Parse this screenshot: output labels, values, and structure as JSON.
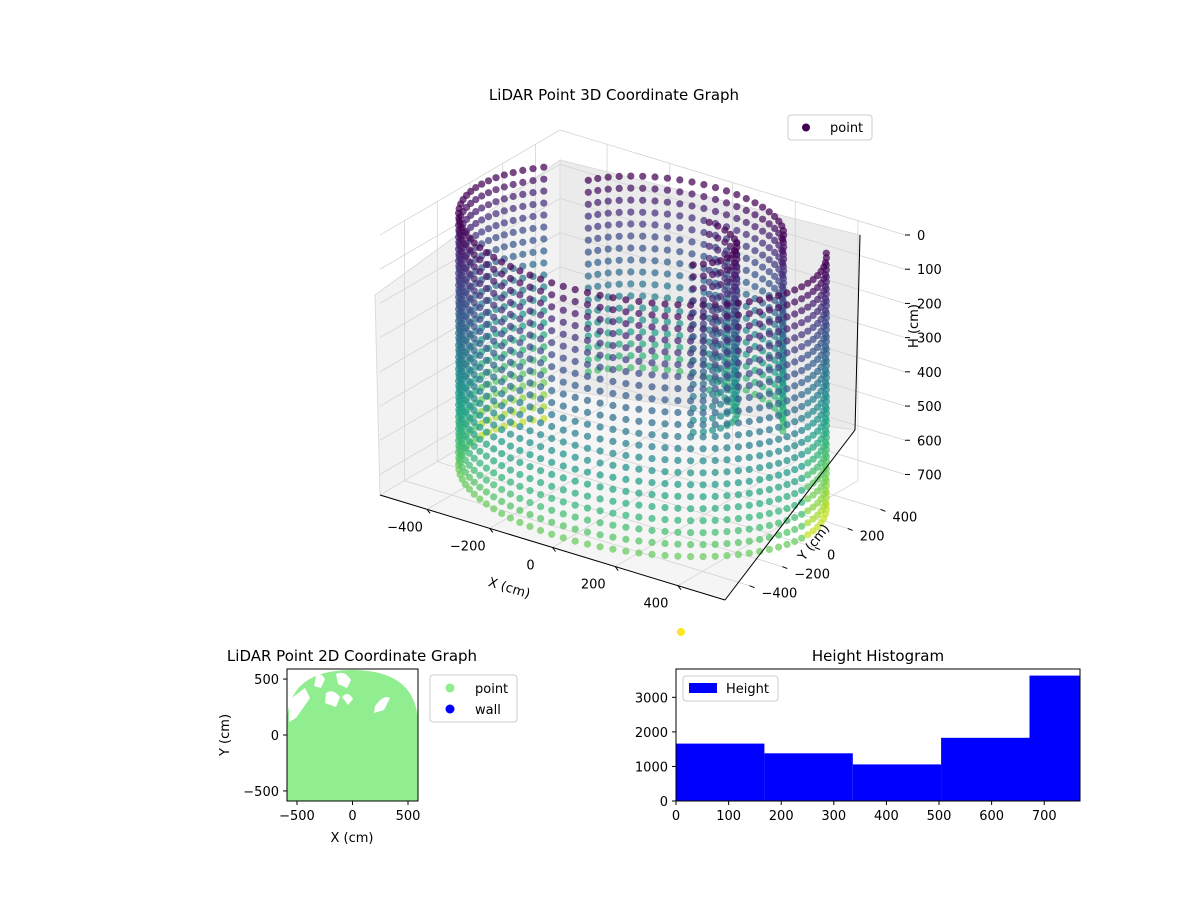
{
  "chart_data": [
    {
      "type": "scatter3d",
      "title": "LiDAR Point 3D Coordinate Graph",
      "xlabel": "X (cm)",
      "ylabel": "Y (cm)",
      "zlabel": "H (cm)",
      "xticks": [
        "−400",
        "−200",
        "0",
        "200",
        "400"
      ],
      "yticks": [
        "−400",
        "−200",
        "0",
        "200",
        "400"
      ],
      "zticks": [
        "0",
        "100",
        "200",
        "300",
        "400",
        "500",
        "600",
        "700"
      ],
      "xlim": [
        -550,
        550
      ],
      "ylim": [
        -550,
        550
      ],
      "zlim": [
        0,
        760
      ],
      "z_inverted": true,
      "legend": {
        "entries": [
          "point"
        ],
        "placement": "upper-right"
      },
      "series": [
        {
          "name": "point",
          "colormap": "viridis",
          "rings": [
            {
              "cx": 0,
              "cy": 0,
              "r": 520,
              "angle_start_deg": -210,
              "angle_end_deg": 30,
              "h_min": 0,
              "h_max": 740,
              "columns": 60
            },
            {
              "cx": 0,
              "cy": 150,
              "r": 330,
              "angle_start_deg": 20,
              "angle_end_deg": 160,
              "h_min": 0,
              "h_max": 560,
              "columns": 24
            },
            {
              "cx": 60,
              "cy": 30,
              "r": 200,
              "angle_start_deg": -40,
              "angle_end_deg": 80,
              "h_min": 0,
              "h_max": 500,
              "columns": 14
            }
          ]
        }
      ]
    },
    {
      "type": "scatter",
      "title": "LiDAR Point 2D Coordinate Graph",
      "xlabel": "X (cm)",
      "ylabel": "Y (cm)",
      "xticks": [
        -500,
        0,
        500
      ],
      "yticks": [
        -500,
        0,
        500
      ],
      "xlim": [
        -590,
        590
      ],
      "ylim": [
        -590,
        590
      ],
      "legend": {
        "placement": "outside-right"
      },
      "series": [
        {
          "name": "point",
          "color": "#90ee90",
          "region": "filled room footprint"
        },
        {
          "name": "wall",
          "color": "#0000ff",
          "region": "none visible"
        }
      ]
    },
    {
      "type": "histogram",
      "title": "Height Histogram",
      "xticks": [
        0,
        100,
        200,
        300,
        400,
        500,
        600,
        700
      ],
      "yticks": [
        0,
        1000,
        2000,
        3000
      ],
      "xlim": [
        0,
        768
      ],
      "ylim": [
        0,
        3820
      ],
      "color": "#0000ff",
      "legend": {
        "entries": [
          "Height"
        ],
        "placement": "upper-left"
      },
      "bins": [
        0,
        168,
        336,
        504,
        672,
        768
      ],
      "values": [
        1660,
        1380,
        1060,
        1830,
        3630
      ],
      "series": [
        {
          "name": "Height"
        }
      ]
    }
  ],
  "stray_marker": {
    "color": "#fde725"
  }
}
